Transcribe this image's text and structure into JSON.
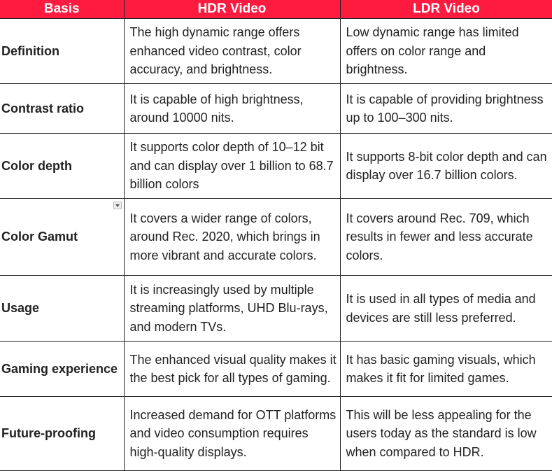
{
  "header": {
    "basis": "Basis",
    "hdr": "HDR Video",
    "ldr": "LDR Video"
  },
  "accent": "#ff1a40",
  "rows": [
    {
      "basis": "Definition",
      "hdr": "The high dynamic range offers enhanced video contrast, color accuracy, and brightness.",
      "ldr": "Low dynamic range has limited offers on color range and brightness."
    },
    {
      "basis": "Contrast ratio",
      "hdr": "It is capable of high brightness, around 10000 nits.",
      "ldr": "It is capable of providing brightness up to 100–300 nits."
    },
    {
      "basis": "Color depth",
      "hdr": "It supports color depth of 10–12 bit and can display over 1 billion to 68.7 billion colors",
      "ldr": "It supports 8-bit color depth and can display over 16.7 billion colors."
    },
    {
      "basis": "Color Gamut",
      "hdr": "It covers a wider range of colors, around Rec. 2020, which brings in more vibrant and accurate colors.",
      "ldr": "It covers around Rec. 709, which results in fewer and less accurate colors."
    },
    {
      "basis": "Usage",
      "hdr": "It is increasingly used by multiple streaming platforms, UHD Blu-rays, and modern TVs.",
      "ldr": "It is used in all types of media and devices are still less preferred."
    },
    {
      "basis": "Gaming experience",
      "hdr": "The enhanced visual quality makes it the best pick for all types of gaming.",
      "ldr": "It has basic gaming visuals, which makes it fit for limited games."
    },
    {
      "basis": "Future-proofing",
      "hdr": "Increased demand for OTT platforms and video consumption requires high-quality displays.",
      "ldr": "This will be less appealing for the users today as the standard is low when compared to HDR."
    }
  ]
}
